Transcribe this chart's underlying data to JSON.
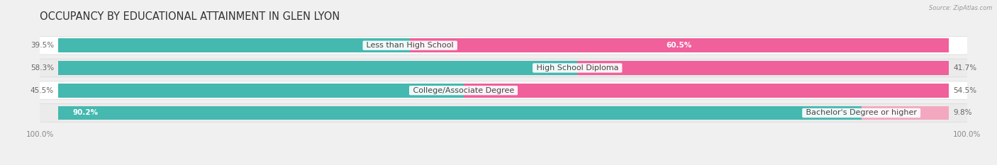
{
  "title": "OCCUPANCY BY EDUCATIONAL ATTAINMENT IN GLEN LYON",
  "source": "Source: ZipAtlas.com",
  "categories": [
    "Less than High School",
    "High School Diploma",
    "College/Associate Degree",
    "Bachelor's Degree or higher"
  ],
  "owner_pct": [
    39.5,
    58.3,
    45.5,
    90.2
  ],
  "renter_pct": [
    60.5,
    41.7,
    54.5,
    9.8
  ],
  "owner_color": "#45b8b0",
  "renter_color": "#f0609a",
  "renter_light_color": "#f4a8c0",
  "bg_color": "#f0f0f0",
  "row_bg_color": "#ffffff",
  "row_bg_color2": "#ebebeb",
  "title_fontsize": 10.5,
  "label_fontsize": 8.0,
  "pct_fontsize": 7.5,
  "tick_fontsize": 7.5,
  "bar_height": 0.62
}
